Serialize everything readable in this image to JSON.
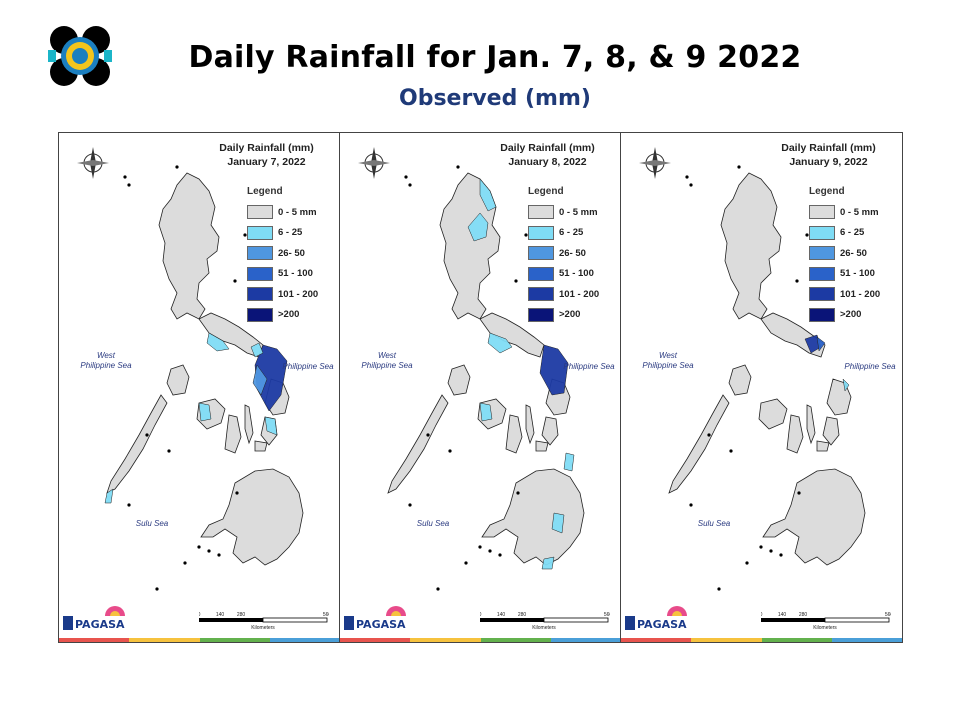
{
  "header": {
    "title": "Daily Rainfall for Jan. 7, 8, & 9 2022",
    "subtitle": "Observed (mm)"
  },
  "legend": {
    "title": "Legend",
    "classes": [
      {
        "label": "0 - 5 mm",
        "color": "#dcdcdc"
      },
      {
        "label": "6 - 25",
        "color": "#7fdcf5"
      },
      {
        "label": "26- 50",
        "color": "#4f97e0"
      },
      {
        "label": "51 - 100",
        "color": "#2a62c9"
      },
      {
        "label": "101 - 200",
        "color": "#1c3aa3"
      },
      {
        "label": ">200",
        "color": "#0a1478"
      }
    ]
  },
  "labels": {
    "west_sea_1": "West",
    "west_sea_2": "Philippine Sea",
    "phil_sea": "Philippine Sea",
    "sulu_sea": "Sulu Sea",
    "brand": "PAGASA",
    "scale_units": "Kilometers",
    "scale_ticks": [
      "0",
      "140",
      "280",
      "560"
    ]
  },
  "panels": [
    {
      "map_title": "Daily Rainfall (mm)",
      "date": "January 7, 2022"
    },
    {
      "map_title": "Daily Rainfall (mm)",
      "date": "January 8, 2022"
    },
    {
      "map_title": "Daily Rainfall (mm)",
      "date": "January 9, 2022"
    }
  ],
  "colors": {
    "land": "#dcdcdc",
    "border": "#222222",
    "title_blue": "#1f3a78",
    "stripe": [
      "#e8544e",
      "#f6c23e",
      "#63b14d",
      "#4a9fd8"
    ]
  }
}
